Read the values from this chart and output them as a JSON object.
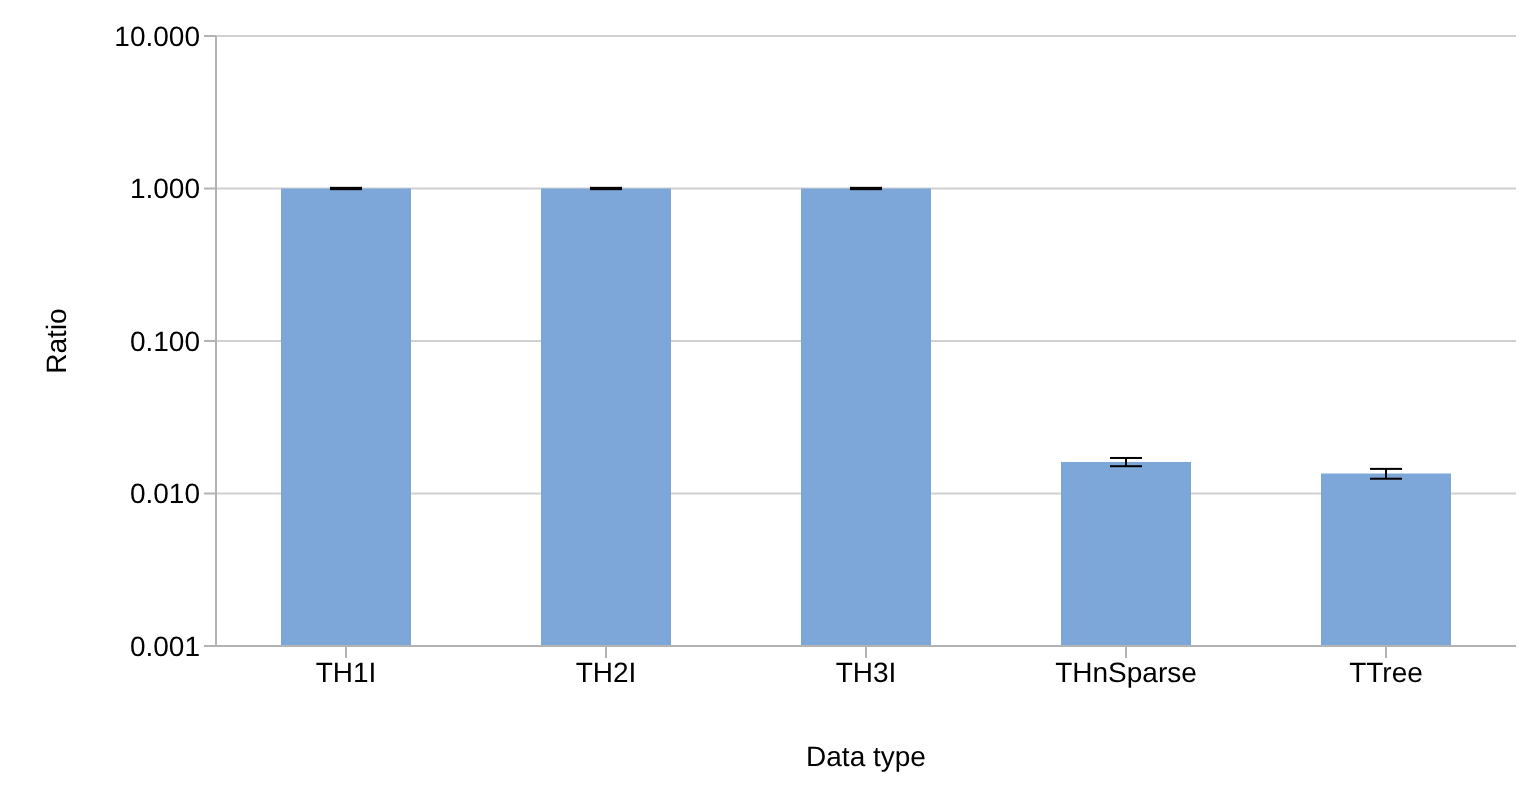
{
  "chart_data": {
    "type": "bar",
    "xlabel": "Data type",
    "ylabel": "Ratio",
    "categories": [
      "TH1I",
      "TH2I",
      "TH3I",
      "THnSparse",
      "TTree"
    ],
    "values": [
      1,
      1,
      1,
      0.0161,
      0.0135
    ],
    "errors": [
      0.01,
      0.01,
      0.01,
      0.001,
      0.001
    ],
    "color": "#7da7d9",
    "log": "y",
    "grid": "y",
    "legend": false,
    "ylim": [
      0.001,
      10
    ],
    "yticks": [
      {
        "value": 0.001,
        "label": "0.001"
      },
      {
        "value": 0.01,
        "label": "0.010"
      },
      {
        "value": 0.1,
        "label": "0.100"
      },
      {
        "value": 1,
        "label": "1.000"
      },
      {
        "value": 10,
        "label": "10.000"
      }
    ]
  }
}
